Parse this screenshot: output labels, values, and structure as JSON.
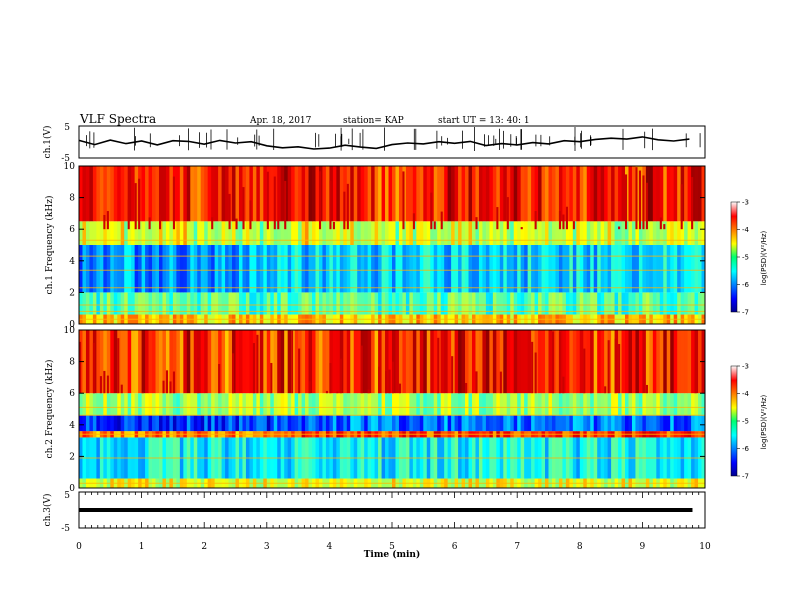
{
  "header": {
    "title": "VLF Spectra",
    "date": "Apr. 18, 2017",
    "station": "station= KAP",
    "start": "start  UT =   13: 40: 1"
  },
  "chart_data": [
    {
      "type": "line",
      "panel": "ch1",
      "ylabel": "ch.1(V)",
      "ylim": [
        -5,
        5
      ],
      "yticks": [
        "5",
        "-5"
      ],
      "xlim": [
        0,
        10
      ],
      "x": [
        0,
        0.25,
        0.5,
        0.75,
        1,
        1.25,
        1.5,
        1.75,
        2,
        2.25,
        2.5,
        2.75,
        3,
        3.25,
        3.5,
        3.75,
        4,
        4.25,
        4.5,
        4.75,
        5,
        5.25,
        5.5,
        5.75,
        6,
        6.25,
        6.5,
        6.75,
        7,
        7.25,
        7.5,
        7.75,
        8,
        8.25,
        8.5,
        8.75,
        9,
        9.25,
        9.5,
        9.75
      ],
      "y": [
        0.5,
        -0.8,
        0.6,
        -0.5,
        0.3,
        -0.9,
        0.4,
        0.2,
        -0.7,
        0.5,
        -0.3,
        0.1,
        -1.2,
        -1.8,
        -1.5,
        -2.2,
        -1.9,
        -1.0,
        -1.6,
        -2.0,
        -0.8,
        -0.3,
        -0.6,
        0.1,
        -0.4,
        0.2,
        -1.1,
        -0.5,
        -0.9,
        -0.2,
        -0.6,
        0.4,
        0.1,
        0.8,
        1.2,
        0.9,
        1.6,
        0.7,
        0.3,
        0.9
      ]
    },
    {
      "type": "heatmap",
      "panel": "ch1-spectrogram",
      "ylabel": "ch.1 Frequency (kHz)",
      "ylim": [
        0,
        10
      ],
      "yticks": [
        "0",
        "2",
        "4",
        "6",
        "8",
        "10"
      ],
      "xlim": [
        0,
        10
      ],
      "colorbar": {
        "label": "log(PSD)(V²/Hz)",
        "range": [
          -7,
          -3
        ],
        "ticks": [
          "-3",
          "-4",
          "-5",
          "-6",
          "-7"
        ]
      },
      "bands": [
        {
          "f0": 0,
          "f1": 0.6,
          "value": -4.3
        },
        {
          "f0": 0.6,
          "f1": 2.0,
          "value": -5.2
        },
        {
          "f0": 2.0,
          "f1": 5.0,
          "value": -5.9
        },
        {
          "f0": 5.0,
          "f1": 6.5,
          "value": -4.9
        },
        {
          "f0": 6.5,
          "f1": 10,
          "value": -3.8
        }
      ],
      "horizontal_lines_khz": [
        0.3,
        0.8,
        1.2,
        2.3,
        3.4,
        4.3,
        5.3
      ]
    },
    {
      "type": "heatmap",
      "panel": "ch2-spectrogram",
      "ylabel": "ch.2 Frequency (kHz)",
      "ylim": [
        0,
        10
      ],
      "yticks": [
        "0",
        "2",
        "4",
        "6",
        "8",
        "10"
      ],
      "xlim": [
        0,
        10
      ],
      "colorbar": {
        "label": "log(PSD)(V²/Hz)",
        "range": [
          -7,
          -3
        ],
        "ticks": [
          "-3",
          "-4",
          "-5",
          "-6",
          "-7"
        ]
      },
      "bands": [
        {
          "f0": 0,
          "f1": 0.6,
          "value": -4.6
        },
        {
          "f0": 0.6,
          "f1": 3.2,
          "value": -5.5
        },
        {
          "f0": 3.2,
          "f1": 3.6,
          "value": -4.0
        },
        {
          "f0": 3.6,
          "f1": 4.6,
          "value": -6.3
        },
        {
          "f0": 4.6,
          "f1": 6.0,
          "value": -4.9
        },
        {
          "f0": 6.0,
          "f1": 10,
          "value": -3.9
        }
      ],
      "horizontal_lines_khz": [
        0.3,
        1.9,
        3.4,
        4.6,
        5.1
      ]
    },
    {
      "type": "line",
      "panel": "ch3",
      "ylabel": "ch.3(V)",
      "ylim": [
        -5,
        5
      ],
      "yticks": [
        "5",
        "-5"
      ],
      "xlim": [
        0,
        10
      ],
      "x": [
        0,
        9.8
      ],
      "y": [
        0,
        0
      ],
      "xlabel": "Time  (min)",
      "xticks": [
        "0",
        "1",
        "2",
        "3",
        "4",
        "5",
        "6",
        "7",
        "8",
        "9",
        "10"
      ]
    }
  ]
}
